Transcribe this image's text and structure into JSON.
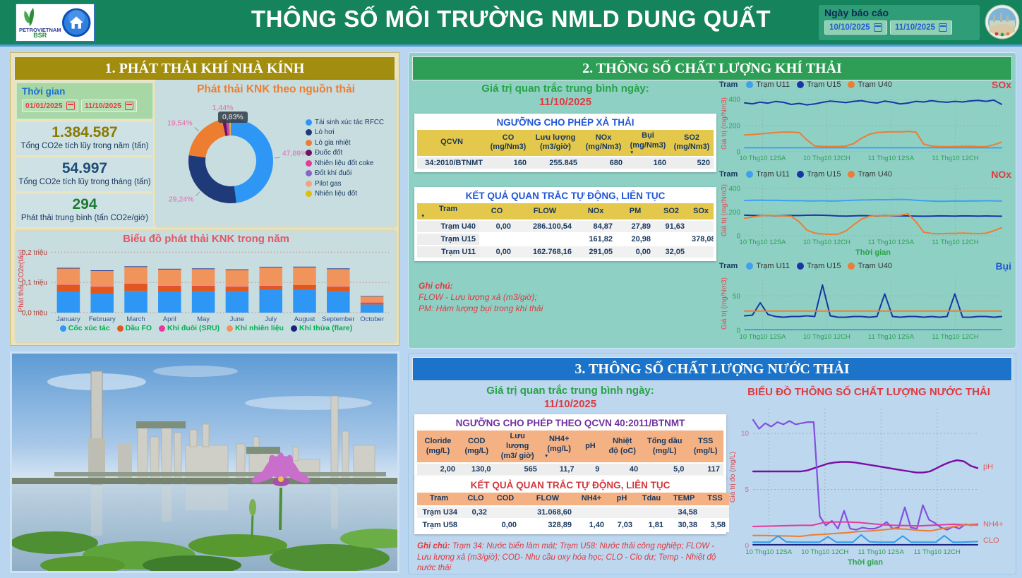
{
  "header": {
    "title": "THÔNG SỐ MÔI TRƯỜNG NMLD DUNG QUẤT",
    "logo_text_1": "PETROVIETNAM",
    "logo_text_2": "BSR",
    "report_date_label": "Ngày báo cáo",
    "date_from": "10/10/2025",
    "date_to": "11/10/2025"
  },
  "section1": {
    "title": "1. PHÁT THẢI KHÍ NHÀ KÍNH",
    "time_label": "Thời gian",
    "time_from": "01/01/2025",
    "time_to": "11/10/2025",
    "kpis": [
      {
        "value": "1.384.587",
        "label": "Tổng CO2e tích lũy trong năm (tấn)",
        "color": "#8A7A00"
      },
      {
        "value": "54.997",
        "label": "Tổng CO2e tích lũy trong tháng (tấn)",
        "color": "#1F4E79"
      },
      {
        "value": "294",
        "label": "Phát thải trung bình (tấn CO2e/giờ)",
        "color": "#1E7B34"
      }
    ]
  },
  "section2": {
    "title": "2. THÔNG SỐ CHẤT LƯỢNG KHÍ THẢI",
    "avg_label": "Giá trị quan trắc trung bình ngày:",
    "avg_date": "11/10/2025",
    "table_limits": {
      "key": "s2a",
      "theme": "gold",
      "title": "NGƯỠNG CHO PHÉP XẢ THẢI",
      "title_color": "#2257D6",
      "headers": [
        "QCVN",
        "CO\n(mg/Nm3)",
        "Lưu lượng\n(m3/giờ)",
        "NOx\n(mg/Nm3)",
        "Bụi\n(mg/Nm3)",
        "SO2\n(mg/Nm3)"
      ],
      "sort_col": 4,
      "rows": [
        [
          "34:2010/BTNMT",
          "160",
          "255.845",
          "680",
          "160",
          "520"
        ]
      ]
    },
    "table_results": {
      "key": "s2b",
      "theme": "gold",
      "title": "KẾT QUẢ QUAN TRẮC TỰ ĐỘNG, LIÊN TỤC",
      "title_color": "#2257D6",
      "headers": [
        "Tram",
        "CO",
        "FLOW",
        "NOx",
        "PM",
        "SO2",
        "SOx"
      ],
      "sort_col": 0,
      "rowhead": true,
      "rows": [
        [
          "Trạm U40",
          "0,00",
          "286.100,54",
          "84,87",
          "27,89",
          "91,63",
          ""
        ],
        [
          "Trạm U15",
          "",
          "",
          "161,82",
          "20,98",
          "",
          "378,08"
        ],
        [
          "Trạm U11",
          "0,00",
          "162.768,16",
          "291,05",
          "0,00",
          "32,05",
          ""
        ]
      ]
    },
    "notes": [
      "Ghi chú:",
      "FLOW - Lưu lượng xả (m3/giờ);",
      "PM: Hàm lượng bụi trong khí thải"
    ]
  },
  "section3": {
    "title": "3. THÔNG SỐ CHẤT LƯỢNG NƯỚC THẢI",
    "avg_label": "Giá trị quan trắc trung bình ngày:",
    "avg_date": "11/10/2025",
    "table_limits": {
      "key": "s3a",
      "theme": "salmon",
      "title": "NGƯỠNG CHO PHÉP THEO QCVN 40:2011/BTNMT",
      "title_color": "#7030A0",
      "headers": [
        "Cloride\n(mg/L)",
        "COD\n(mg/L)",
        "Lưu lượng\n(m3/ giờ)",
        "NH4+\n(mg/L)",
        "pH",
        "Nhiệt\nđộ (oC)",
        "Tổng dầu\n(mg/L)",
        "TSS\n(mg/L)"
      ],
      "sort_col": 3,
      "rows": [
        [
          "2,00",
          "130,0",
          "565",
          "11,7",
          "9",
          "40",
          "5,0",
          "117"
        ]
      ]
    },
    "table_results": {
      "key": "s3b",
      "theme": "salmon",
      "title": "KẾT QUẢ QUAN TRẮC TỰ ĐỘNG, LIÊN TỤC",
      "title_color": "#D2373B",
      "headers": [
        "Tram",
        "CLO",
        "COD",
        "FLOW",
        "NH4+",
        "pH",
        "Tdau",
        "TEMP",
        "TSS"
      ],
      "rowhead_plain": true,
      "rows": [
        [
          "Trạm U34",
          "0,32",
          "",
          "31.068,60",
          "",
          "",
          "",
          "34,58",
          ""
        ],
        [
          "Trạm U58",
          "",
          "0,00",
          "328,89",
          "1,40",
          "7,03",
          "1,81",
          "30,38",
          "3,58"
        ]
      ]
    },
    "notes_bold": "Ghi chú:",
    "notes_text": " Trạm 34: Nước biển làm mát; Trạm U58: Nước thải công nghiệp; FLOW - Lưu lượng xả (m3/giờ);  COD- Nhu cầu oxy hóa học; CLO - Clo dư; Temp - Nhiệt độ nước thải"
  },
  "chart_data": [
    {
      "id": "knk-source",
      "type": "pie",
      "title": "Phát thải KNK theo nguồn thải",
      "labels": [
        "Tái sinh xúc tác RFCC",
        "Lò hơi",
        "Lò gia nhiệt",
        "Đuốc đốt",
        "Nhiên liệu đốt coke",
        "Đốt khí đuôi",
        "Pilot gas",
        "Nhiên liệu đốt"
      ],
      "values": [
        47.89,
        29.24,
        19.54,
        1.44,
        0.83,
        0.5,
        0.36,
        0.2
      ],
      "colors": [
        "#2E96F5",
        "#1F3A78",
        "#ED7D31",
        "#6B1460",
        "#E6399B",
        "#8A63C9",
        "#F4A285",
        "#E0C000"
      ],
      "percent_labels": [
        "47,89%",
        "29,24%",
        "19,54%",
        "1,44%"
      ],
      "tooltip": "0,83%",
      "label_color": "#EE66AE"
    },
    {
      "id": "knk-year",
      "type": "bar",
      "stacked": true,
      "title": "Biểu đồ phát thải KNK trong năm",
      "ylabel": "Phát thải CO2e(tấn)",
      "ylim": [
        0,
        0.21
      ],
      "yticks": [
        0,
        0.1,
        0.2
      ],
      "ytick_labels": [
        "0,0 triệu",
        "0,1 triệu",
        "0,2 triệu"
      ],
      "categories": [
        "January",
        "February",
        "March",
        "April",
        "May",
        "June",
        "July",
        "August",
        "September",
        "October"
      ],
      "series": [
        {
          "name": "Cốc xúc tác",
          "color": "#2E96F5",
          "values": [
            0.07,
            0.063,
            0.072,
            0.069,
            0.071,
            0.071,
            0.075,
            0.075,
            0.071,
            0.027
          ]
        },
        {
          "name": "Dầu FO",
          "color": "#E2571B",
          "values": [
            0.021,
            0.022,
            0.023,
            0.019,
            0.017,
            0.014,
            0.013,
            0.015,
            0.014,
            0.006
          ]
        },
        {
          "name": "Khí đuôi (SRU)",
          "color": "#E6399B",
          "values": [
            0.001,
            0.001,
            0.001,
            0.001,
            0.001,
            0.001,
            0.001,
            0.001,
            0.001,
            0.0005
          ]
        },
        {
          "name": "Khí nhiên liệu",
          "color": "#F0945C",
          "values": [
            0.054,
            0.052,
            0.055,
            0.054,
            0.055,
            0.055,
            0.06,
            0.059,
            0.058,
            0.02
          ]
        },
        {
          "name": "Khí thừa (flare)",
          "color": "#1A237E",
          "values": [
            0.002,
            0.002,
            0.002,
            0.002,
            0.002,
            0.002,
            0.002,
            0.002,
            0.002,
            0.001
          ]
        }
      ]
    },
    {
      "id": "sox",
      "type": "line",
      "title": "SOx",
      "title_color": "#E0393F",
      "legend_label": "Tram",
      "ylabel": "Giá trị (mg/Nm3)",
      "ylim": [
        0,
        430
      ],
      "yticks": [
        0,
        200,
        400
      ],
      "tick_color": "#2E9E57",
      "xticks": [
        "10 Thg10 12SA",
        "10 Thg10 12CH",
        "11 Thg10 12SA",
        "11 Thg10 12CH"
      ],
      "series": [
        {
          "name": "Trạm U11",
          "color": "#3FA0F0",
          "values": [
            30,
            30,
            30,
            30,
            30,
            30,
            30,
            30
          ]
        },
        {
          "name": "Trạm U15",
          "color": "#1736A4",
          "values": [
            372,
            365,
            378,
            370,
            383,
            376,
            360,
            368,
            357,
            364,
            376,
            386,
            380,
            374,
            384,
            389,
            378,
            371,
            386,
            377,
            364,
            371,
            384,
            379,
            389,
            381,
            377,
            384,
            379,
            387,
            391,
            384,
            393,
            361
          ]
        },
        {
          "name": "Trạm U40",
          "color": "#ED7D31",
          "values": [
            128,
            131,
            136,
            141,
            147,
            150,
            149,
            147,
            90,
            44,
            41,
            40,
            40,
            43,
            62,
            102,
            132,
            146,
            150,
            152,
            151,
            154,
            150,
            58,
            43,
            40,
            39,
            40,
            41,
            42,
            40,
            39,
            52,
            73
          ]
        }
      ]
    },
    {
      "id": "nox",
      "type": "line",
      "title": "NOx",
      "title_color": "#E0393F",
      "legend_label": "Tram",
      "ylabel": "Giá trị (mg/Nm3)",
      "xlabel": "Thời gian",
      "ylim": [
        0,
        430
      ],
      "yticks": [
        0,
        200,
        400
      ],
      "tick_color": "#2E9E57",
      "xticks": [
        "10 Thg10 12SA",
        "10 Thg10 12CH",
        "11 Thg10 12SA",
        "11 Thg10 12CH"
      ],
      "series": [
        {
          "name": "Trạm U11",
          "color": "#3FA0F0",
          "values": [
            298,
            300,
            301,
            299,
            300,
            298,
            296,
            297,
            295,
            294,
            296,
            293,
            295,
            298,
            300,
            302,
            303,
            305,
            304,
            306,
            307,
            305,
            300,
            296,
            293,
            291,
            292,
            294,
            293,
            295,
            294,
            296,
            295,
            293
          ]
        },
        {
          "name": "Trạm U15",
          "color": "#1736A4",
          "values": [
            174,
            172,
            170,
            171,
            169,
            170,
            172,
            171,
            173,
            175,
            173,
            171,
            167,
            166,
            168,
            170,
            169,
            168,
            170,
            169,
            168,
            167,
            166,
            165,
            166,
            168,
            167,
            166,
            168,
            167,
            166,
            167,
            166,
            165
          ]
        },
        {
          "name": "Trạm U40",
          "color": "#ED7D31",
          "values": [
            148,
            158,
            168,
            172,
            170,
            167,
            164,
            118,
            48,
            22,
            15,
            12,
            14,
            40,
            92,
            140,
            164,
            170,
            168,
            171,
            173,
            186,
            118,
            30,
            20,
            17,
            19,
            20,
            22,
            20,
            18,
            21,
            42,
            68
          ]
        }
      ]
    },
    {
      "id": "dust",
      "type": "line",
      "title": "Bụi",
      "title_color": "#2257D6",
      "legend_label": "Tram",
      "ylabel": "Giá trị (mg/Nm3)",
      "ylim": [
        0,
        78
      ],
      "yticks": [
        0,
        50
      ],
      "tick_color": "#2E9E57",
      "xticks": [
        "10 Thg10 12SA",
        "10 Thg10 12CH",
        "11 Thg10 12SA",
        "11 Thg10 12CH"
      ],
      "series": [
        {
          "name": "Trạm U11",
          "color": "#3FA0F0",
          "values": [
            1,
            1,
            1,
            1
          ]
        },
        {
          "name": "Trạm U15",
          "color": "#1736A4",
          "values": [
            21,
            22,
            40,
            23,
            20,
            19,
            20,
            20,
            21,
            20,
            66,
            21,
            19,
            19,
            20,
            20,
            19,
            20,
            53,
            20,
            19,
            20,
            20,
            19,
            20,
            19,
            20,
            53,
            19,
            19,
            20,
            20,
            19,
            20
          ]
        },
        {
          "name": "Trạm U40",
          "color": "#ED7D31",
          "values": [
            28,
            28,
            28,
            28
          ]
        }
      ]
    },
    {
      "id": "water",
      "type": "line",
      "title": "BIỂU ĐỒ THÔNG SỐ CHẤT LƯỢNG NƯỚC THẢI",
      "title_color": "#E0393F",
      "ylabel": "Giá trị đo (mg/L)",
      "xlabel": "Thời gian",
      "ylim": [
        0,
        12.2
      ],
      "yticks": [
        0,
        5,
        10
      ],
      "tick_color": "#E060A0",
      "xticks": [
        "10 Thg10 12SA",
        "10 Thg10 12CH",
        "11 Thg10 12SA",
        "11 Thg10 12CH"
      ],
      "right_labels": [
        {
          "text": "pH",
          "v": 7.0
        },
        {
          "text": "NH4+",
          "v": 1.9
        },
        {
          "text": "CLO",
          "v": 0.45
        }
      ],
      "right_label_color": "#E05C5C",
      "series": [
        {
          "name": "pH",
          "color": "#7A0CA5",
          "width": 2.4,
          "values": [
            6.6,
            6.6,
            6.6,
            6.6,
            6.6,
            6.6,
            6.6,
            6.6,
            6.7,
            6.9,
            7.1,
            7.3,
            7.4,
            7.45,
            7.45,
            7.4,
            7.3,
            7.2,
            7.1,
            7.0,
            6.9,
            6.8,
            6.7,
            6.6,
            6.5,
            6.5,
            6.6,
            6.9,
            7.2,
            7.45,
            7.6,
            7.5,
            7.1,
            6.9
          ]
        },
        {
          "color": "#8250DF",
          "width": 2.2,
          "values": [
            11.2,
            10.4,
            10.9,
            10.6,
            11.0,
            10.8,
            11.1,
            10.8,
            10.9,
            11.0,
            11.0,
            2.6,
            1.8,
            2.2,
            1.5,
            3.1,
            1.5,
            1.4,
            1.6,
            1.5,
            1.5,
            1.7,
            2.1,
            1.5,
            1.6,
            3.4,
            1.6,
            1.5,
            3.6,
            2.3,
            2.0,
            1.6,
            1.4,
            1.7,
            1.5,
            1.9,
            1.8,
            1.9
          ]
        },
        {
          "name": "NH4+",
          "color": "#E6399B",
          "width": 2,
          "values": [
            1.7,
            1.72,
            1.75,
            1.78,
            1.8,
            1.8,
            2.05,
            2.1,
            2.1,
            2.05,
            1.95,
            1.85,
            1.8,
            1.78,
            1.75,
            1.8,
            1.85,
            1.9,
            1.85,
            1.9
          ]
        },
        {
          "color": "#ED7D31",
          "width": 2,
          "values": [
            0.9,
            0.9,
            0.87,
            0.85,
            0.82,
            0.95,
            1.0,
            1.08,
            1.15,
            1.25,
            1.3,
            1.4,
            1.5,
            1.45,
            1.35,
            1.3,
            1.5,
            1.7,
            1.85,
            1.8
          ]
        },
        {
          "name": "CLO",
          "color": "#2D9CEF",
          "width": 2,
          "values": [
            0.3,
            0.3,
            0.3,
            0.85,
            0.32,
            0.3,
            0.3,
            0.3,
            0.3,
            0.78,
            0.3,
            0.3,
            0.3,
            0.95,
            0.34,
            0.3,
            0.3,
            0.3,
            0.85,
            0.3,
            0.3,
            0.3,
            0.3,
            0.88,
            0.3,
            0.3,
            0.32,
            0.35
          ]
        },
        {
          "color": "#1A237E",
          "width": 2,
          "values": [
            0.07,
            0.07
          ]
        }
      ]
    }
  ]
}
